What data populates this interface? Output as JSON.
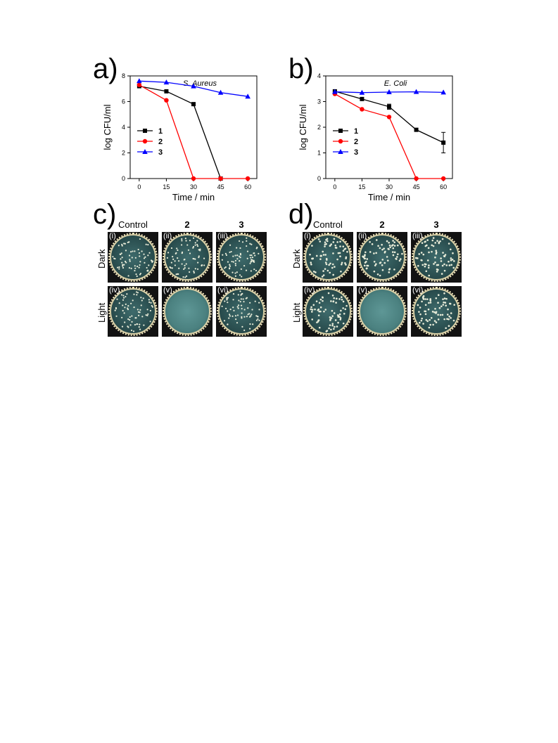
{
  "panels": {
    "a": "a)",
    "b": "b)",
    "c": "c)",
    "d": "d)"
  },
  "legend": [
    "1",
    "2",
    "3"
  ],
  "chart_data": [
    {
      "type": "line",
      "title": "S. Aureus",
      "xlabel": "Time / min",
      "ylabel": "log CFU/ml",
      "x": [
        0,
        15,
        30,
        45,
        60
      ],
      "xticks": [
        "0",
        "15",
        "30",
        "45",
        "60"
      ],
      "yticks": [
        "0",
        "2",
        "4",
        "6",
        "8"
      ],
      "ylim": [
        0,
        8
      ],
      "xlim": [
        -5,
        65
      ],
      "legend_placement": "center-left",
      "series": [
        {
          "name": "1",
          "color": "#000000",
          "marker": "square",
          "x": [
            0,
            15,
            30,
            45
          ],
          "values": [
            7.2,
            6.8,
            5.8,
            0
          ]
        },
        {
          "name": "2",
          "color": "#ff0000",
          "marker": "circle",
          "x": [
            0,
            15,
            30,
            45,
            60
          ],
          "values": [
            7.3,
            6.1,
            0,
            0,
            0
          ]
        },
        {
          "name": "3",
          "color": "#0000ff",
          "marker": "triangle",
          "x": [
            0,
            15,
            30,
            45,
            60
          ],
          "values": [
            7.6,
            7.5,
            7.2,
            6.7,
            6.4
          ]
        }
      ]
    },
    {
      "type": "line",
      "title": "E. Coli",
      "xlabel": "Time / min",
      "ylabel": "log CFU/ml",
      "x": [
        0,
        15,
        30,
        45,
        60
      ],
      "xticks": [
        "0",
        "15",
        "30",
        "45",
        "60"
      ],
      "yticks": [
        "0",
        "1",
        "2",
        "3",
        "4"
      ],
      "ylim": [
        0,
        4
      ],
      "xlim": [
        -5,
        65
      ],
      "legend_placement": "center-left",
      "series": [
        {
          "name": "1",
          "color": "#000000",
          "marker": "square",
          "x": [
            0,
            15,
            30,
            45,
            60
          ],
          "values": [
            3.4,
            3.1,
            2.8,
            1.9,
            1.4
          ],
          "error": [
            0,
            0,
            0.1,
            0,
            0.4
          ]
        },
        {
          "name": "2",
          "color": "#ff0000",
          "marker": "circle",
          "x": [
            0,
            15,
            30,
            45,
            60
          ],
          "values": [
            3.3,
            2.7,
            2.4,
            0,
            0
          ]
        },
        {
          "name": "3",
          "color": "#0000ff",
          "marker": "triangle",
          "x": [
            0,
            15,
            30,
            45,
            60
          ],
          "values": [
            3.38,
            3.35,
            3.37,
            3.38,
            3.36
          ]
        }
      ]
    }
  ],
  "photo_grids": [
    {
      "columns": [
        "Control",
        "2",
        "3"
      ],
      "rows": [
        "Dark",
        "Light"
      ],
      "plates": [
        {
          "label": "(i)",
          "cleared": false
        },
        {
          "label": "(ii)",
          "cleared": false
        },
        {
          "label": "(iii)",
          "cleared": false
        },
        {
          "label": "(iv)",
          "cleared": false
        },
        {
          "label": "(v)",
          "cleared": true
        },
        {
          "label": "(vi)",
          "cleared": false
        }
      ]
    },
    {
      "columns": [
        "Control",
        "2",
        "3"
      ],
      "rows": [
        "Dark",
        "Light"
      ],
      "plates": [
        {
          "label": "(i)",
          "cleared": false
        },
        {
          "label": "(ii)",
          "cleared": false
        },
        {
          "label": "(iii)",
          "cleared": false
        },
        {
          "label": "(iv)",
          "cleared": false
        },
        {
          "label": "(v)",
          "cleared": true
        },
        {
          "label": "(vi)",
          "cleared": false
        }
      ]
    }
  ]
}
